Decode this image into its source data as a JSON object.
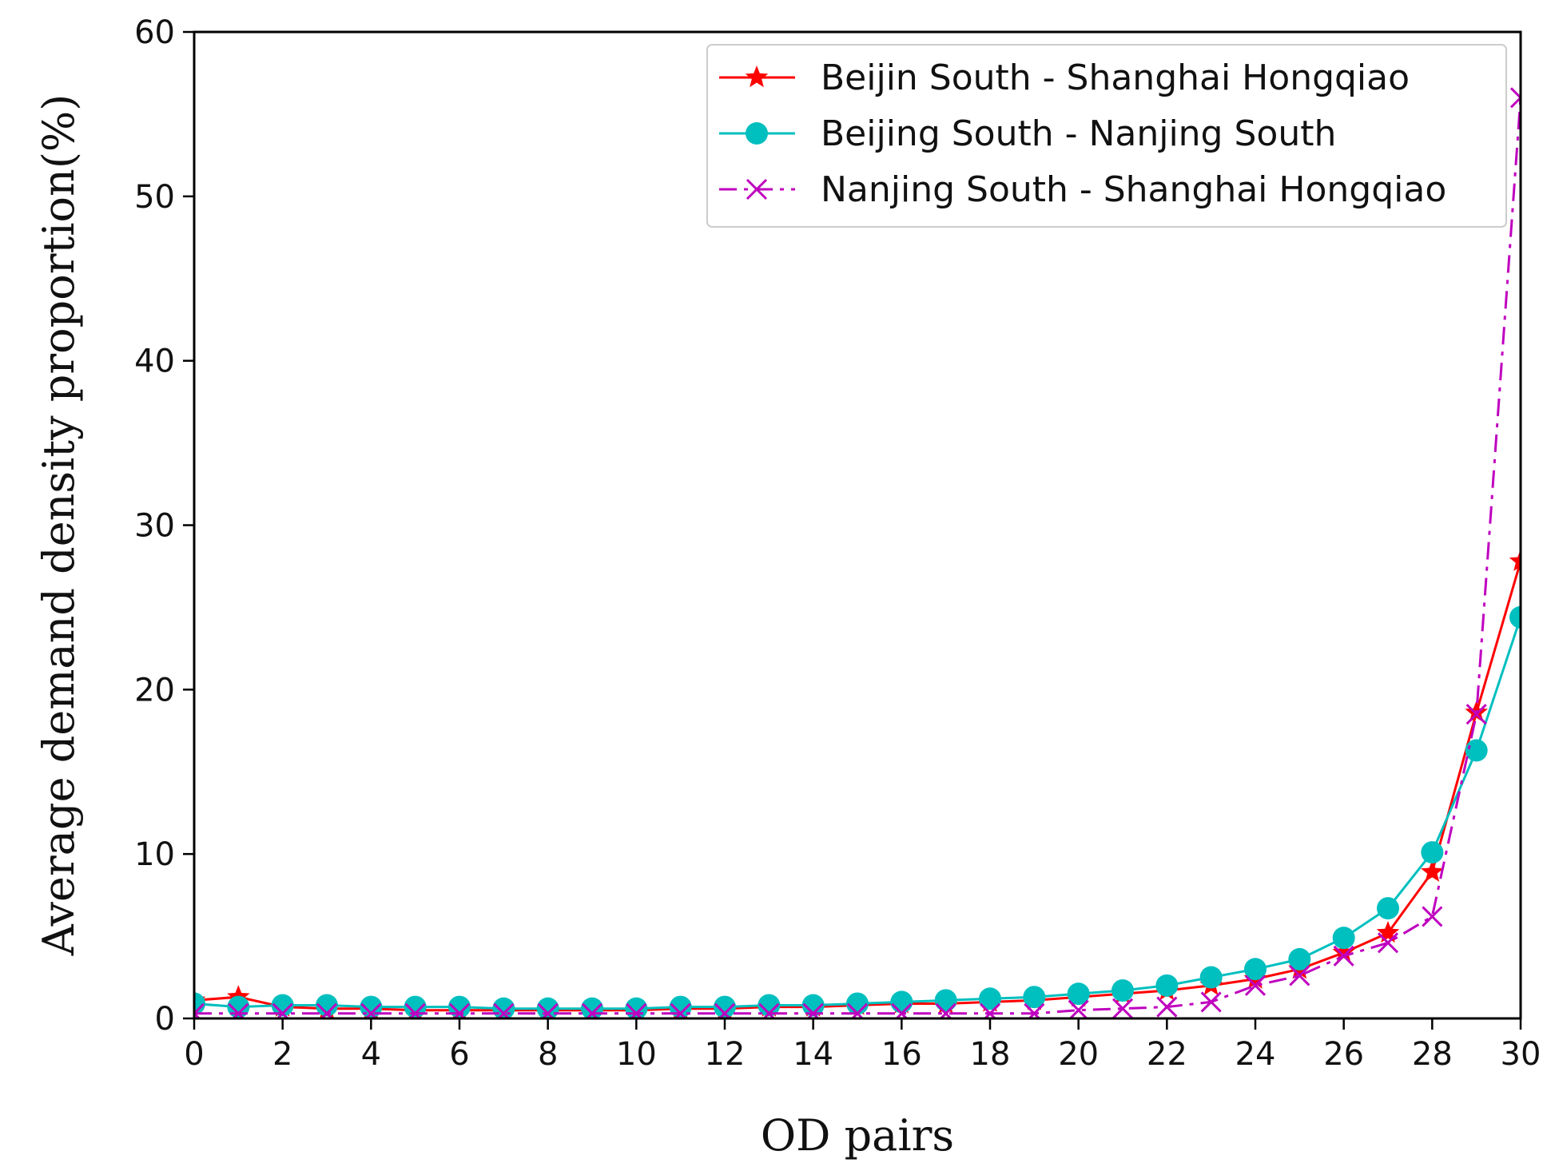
{
  "chart_data": {
    "type": "line",
    "title": "",
    "xlabel": "OD pairs",
    "ylabel": "Average demand density proportion(%)",
    "xlim": [
      0,
      30
    ],
    "ylim": [
      0,
      60
    ],
    "xticks": [
      0,
      2,
      4,
      6,
      8,
      10,
      12,
      14,
      16,
      18,
      20,
      22,
      24,
      26,
      28,
      30
    ],
    "yticks": [
      0,
      10,
      20,
      30,
      40,
      50,
      60
    ],
    "grid": false,
    "legend_position": "top-right",
    "x": [
      0,
      1,
      2,
      3,
      4,
      5,
      6,
      7,
      8,
      9,
      10,
      11,
      12,
      13,
      14,
      15,
      16,
      17,
      18,
      19,
      20,
      21,
      22,
      23,
      24,
      25,
      26,
      27,
      28,
      29,
      30
    ],
    "series": [
      {
        "name": "Beijin South - Shanghai Hongqiao",
        "color": "#ff0000",
        "marker": "star",
        "linestyle": "solid",
        "values": [
          1.1,
          1.3,
          0.7,
          0.6,
          0.6,
          0.5,
          0.5,
          0.5,
          0.5,
          0.5,
          0.5,
          0.6,
          0.6,
          0.7,
          0.7,
          0.8,
          0.9,
          0.9,
          1.0,
          1.1,
          1.3,
          1.5,
          1.7,
          2.0,
          2.4,
          3.0,
          4.0,
          5.2,
          8.9,
          18.6,
          27.8
        ]
      },
      {
        "name": "Beijing South - Nanjing South",
        "color": "#00bfbf",
        "marker": "circle",
        "linestyle": "solid",
        "values": [
          0.9,
          0.7,
          0.8,
          0.8,
          0.7,
          0.7,
          0.7,
          0.6,
          0.6,
          0.6,
          0.6,
          0.7,
          0.7,
          0.8,
          0.8,
          0.9,
          1.0,
          1.1,
          1.2,
          1.3,
          1.5,
          1.7,
          2.0,
          2.5,
          3.0,
          3.6,
          4.9,
          6.7,
          10.1,
          16.3,
          24.4
        ]
      },
      {
        "name": "Nanjing South - Shanghai Hongqiao",
        "color": "#bf00bf",
        "marker": "x",
        "linestyle": "dashdot",
        "values": [
          0.3,
          0.3,
          0.3,
          0.3,
          0.3,
          0.3,
          0.3,
          0.3,
          0.3,
          0.3,
          0.3,
          0.3,
          0.3,
          0.3,
          0.3,
          0.3,
          0.3,
          0.3,
          0.3,
          0.3,
          0.5,
          0.6,
          0.7,
          1.0,
          2.0,
          2.6,
          3.8,
          4.6,
          6.2,
          18.5,
          56.0
        ]
      }
    ]
  }
}
